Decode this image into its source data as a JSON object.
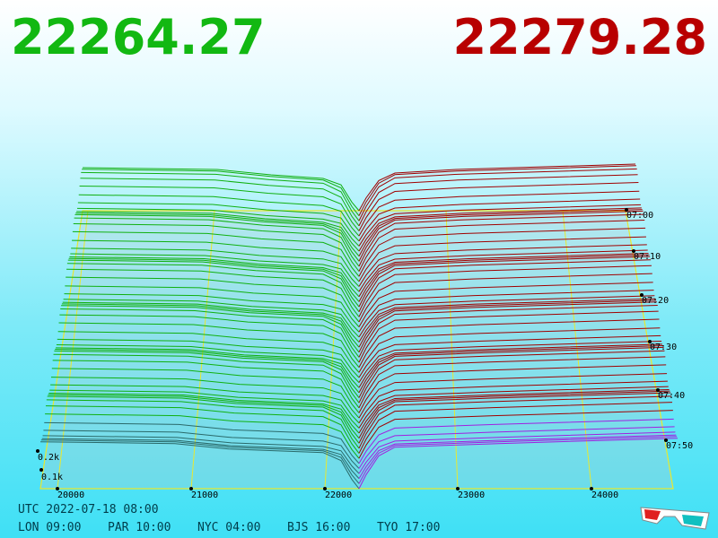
{
  "header": {
    "bid": "22264.27",
    "ask": "22279.28"
  },
  "price_axis": [
    "20000",
    "21000",
    "22000",
    "23000",
    "24000"
  ],
  "depth_axis": [
    "0.2k",
    "0.1k"
  ],
  "time_axis": [
    "07:00",
    "07:10",
    "07:20",
    "07:30",
    "07:40",
    "07:50"
  ],
  "footer": {
    "utc": "UTC 2022-07-18 08:00",
    "clocks": [
      "LON 09:00",
      "PAR 10:00",
      "NYC 04:00",
      "BJS 16:00",
      "TYO 17:00"
    ]
  }
}
